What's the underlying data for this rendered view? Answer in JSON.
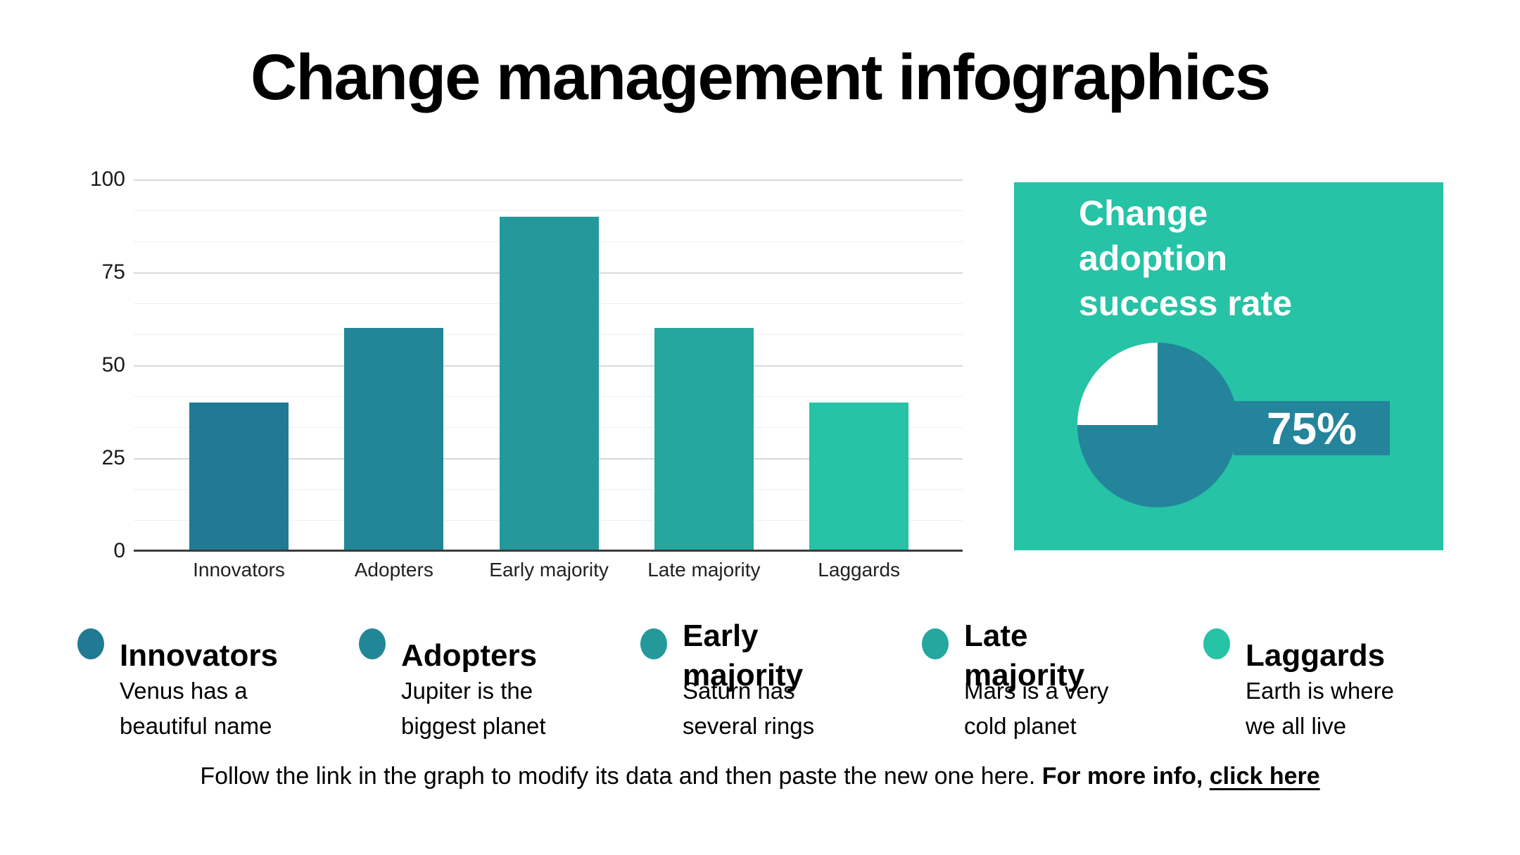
{
  "title": "Change management infographics",
  "chart_data": [
    {
      "type": "bar",
      "categories": [
        "Innovators",
        "Adopters",
        "Early majority",
        "Late majority",
        "Laggards"
      ],
      "values": [
        40,
        60,
        90,
        60,
        40
      ],
      "colors": [
        "#217A93",
        "#218797",
        "#24999B",
        "#23A79E",
        "#26C3A6"
      ],
      "title": "",
      "xlabel": "",
      "ylabel": "",
      "ylim": [
        0,
        100
      ],
      "yticks": [
        0,
        25,
        50,
        75,
        100
      ],
      "minor_gridlines_between_major": 2,
      "grid": true,
      "legend_position": "none"
    },
    {
      "type": "pie",
      "categories": [
        "success",
        "remainder"
      ],
      "values": [
        75,
        25
      ],
      "colors": [
        "#24849B",
        "#FFFFFF"
      ],
      "title": "Change adoption success rate"
    }
  ],
  "panel": {
    "bg": "#26C3A6",
    "title": "Change\nadoption\nsuccess rate",
    "rate_label": "75%",
    "ribbon_color": "#24849B",
    "pie_filled_color": "#24849B",
    "pie_empty_color": "#FFFFFF",
    "text_color": "#FFFFFF"
  },
  "legend": {
    "items": [
      {
        "title": "Innovators",
        "description": "Venus has a\nbeautiful name",
        "color": "#217A93"
      },
      {
        "title": "Adopters",
        "description": "Jupiter is the\nbiggest planet",
        "color": "#218797"
      },
      {
        "title": "Early\nmajority",
        "description": "Saturn has\nseveral rings",
        "color": "#24999B"
      },
      {
        "title": "Late\nmajority",
        "description": "Mars is a very\ncold planet",
        "color": "#23A79E"
      },
      {
        "title": "Laggards",
        "description": "Earth is where\nwe all live",
        "color": "#26C3A6"
      }
    ]
  },
  "note": {
    "prefix": "Follow the link in the graph to modify its data and then paste the new one here. ",
    "bold": "For more info, ",
    "link": "click here"
  }
}
